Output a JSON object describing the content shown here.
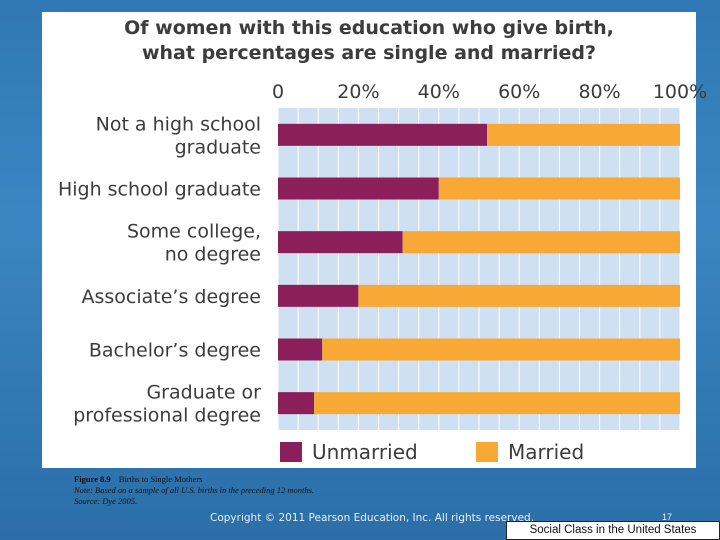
{
  "chart_data": {
    "type": "bar",
    "orientation": "horizontal-stacked",
    "title_lines": [
      "Of women with this education who give birth,",
      "what percentages are single and married?"
    ],
    "categories": [
      [
        "Not a high school",
        "graduate"
      ],
      [
        "High school graduate"
      ],
      [
        "Some college,",
        "no degree"
      ],
      [
        "Associate’s degree"
      ],
      [
        "Bachelor’s degree"
      ],
      [
        "Graduate or",
        "professional degree"
      ]
    ],
    "series": [
      {
        "name": "Unmarried",
        "color": "#8b1f5b",
        "values": [
          52,
          40,
          31,
          20,
          11,
          9
        ]
      },
      {
        "name": "Married",
        "color": "#f7a835",
        "values": [
          48,
          60,
          69,
          80,
          89,
          91
        ]
      }
    ],
    "xlim": [
      0,
      100
    ],
    "x_ticks": [
      0,
      20,
      40,
      60,
      80,
      100
    ],
    "x_tick_labels": [
      "0",
      "20%",
      "40%",
      "60%",
      "80%",
      "100%"
    ],
    "legend_position": "bottom"
  },
  "caption": {
    "figure_label": "Figure 8.9",
    "figure_title": "Births to Single Mothers",
    "note": "Note: Based on a sample of all U.S. births in the preceding 12 months.",
    "source": "Source: Dye 2005."
  },
  "footer": {
    "copyright": "Copyright © 2011 Pearson Education, Inc. All rights reserved.",
    "page_number": "17",
    "course_title": "Social Class in the United States"
  }
}
